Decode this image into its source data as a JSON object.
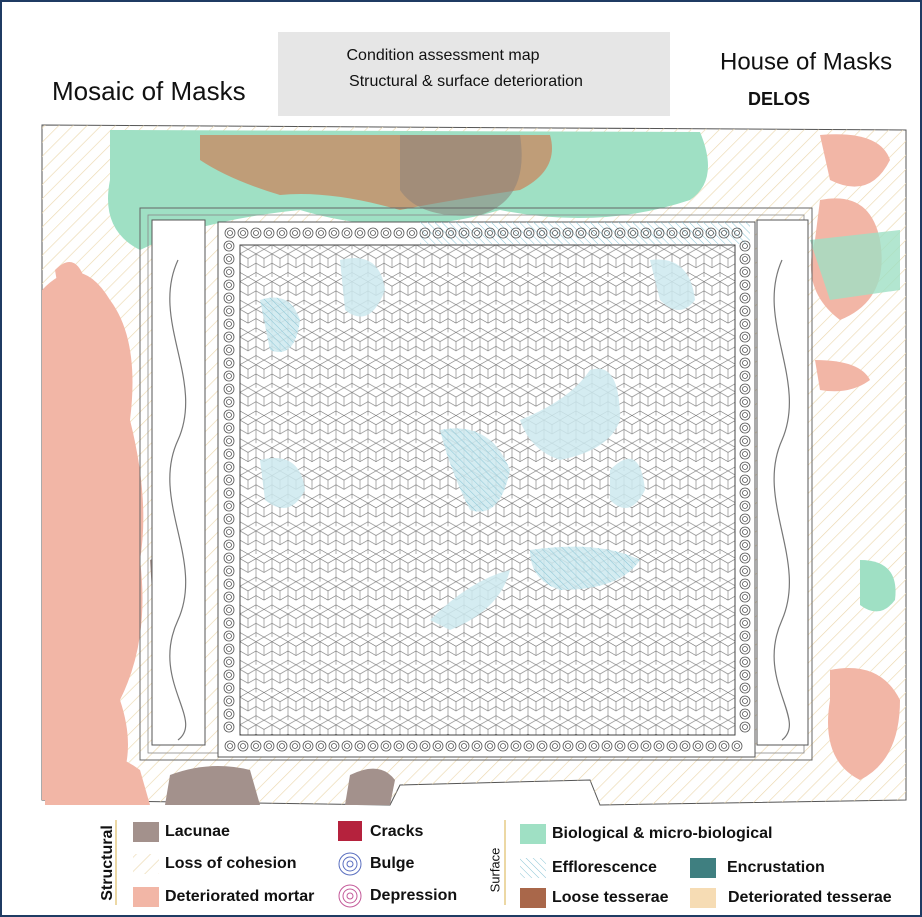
{
  "header": {
    "left_title": "Mosaic of Masks",
    "center_lines": [
      "Condition assessment map",
      "Structural & surface deterioration"
    ],
    "right_title": "House of Masks",
    "right_subtitle": "DELOS"
  },
  "legend": {
    "groups": [
      {
        "name": "Structural",
        "items": [
          "Lacunae",
          "Loss of cohesion",
          "Deteriorated mortar",
          "Cracks",
          "Bulge",
          "Depression"
        ]
      },
      {
        "name": "Surface",
        "items": [
          "Biological & micro-biological",
          "Efflorescence",
          "Encrustation",
          "Loose tesserae",
          "Deteriorated tesserae"
        ]
      }
    ]
  }
}
